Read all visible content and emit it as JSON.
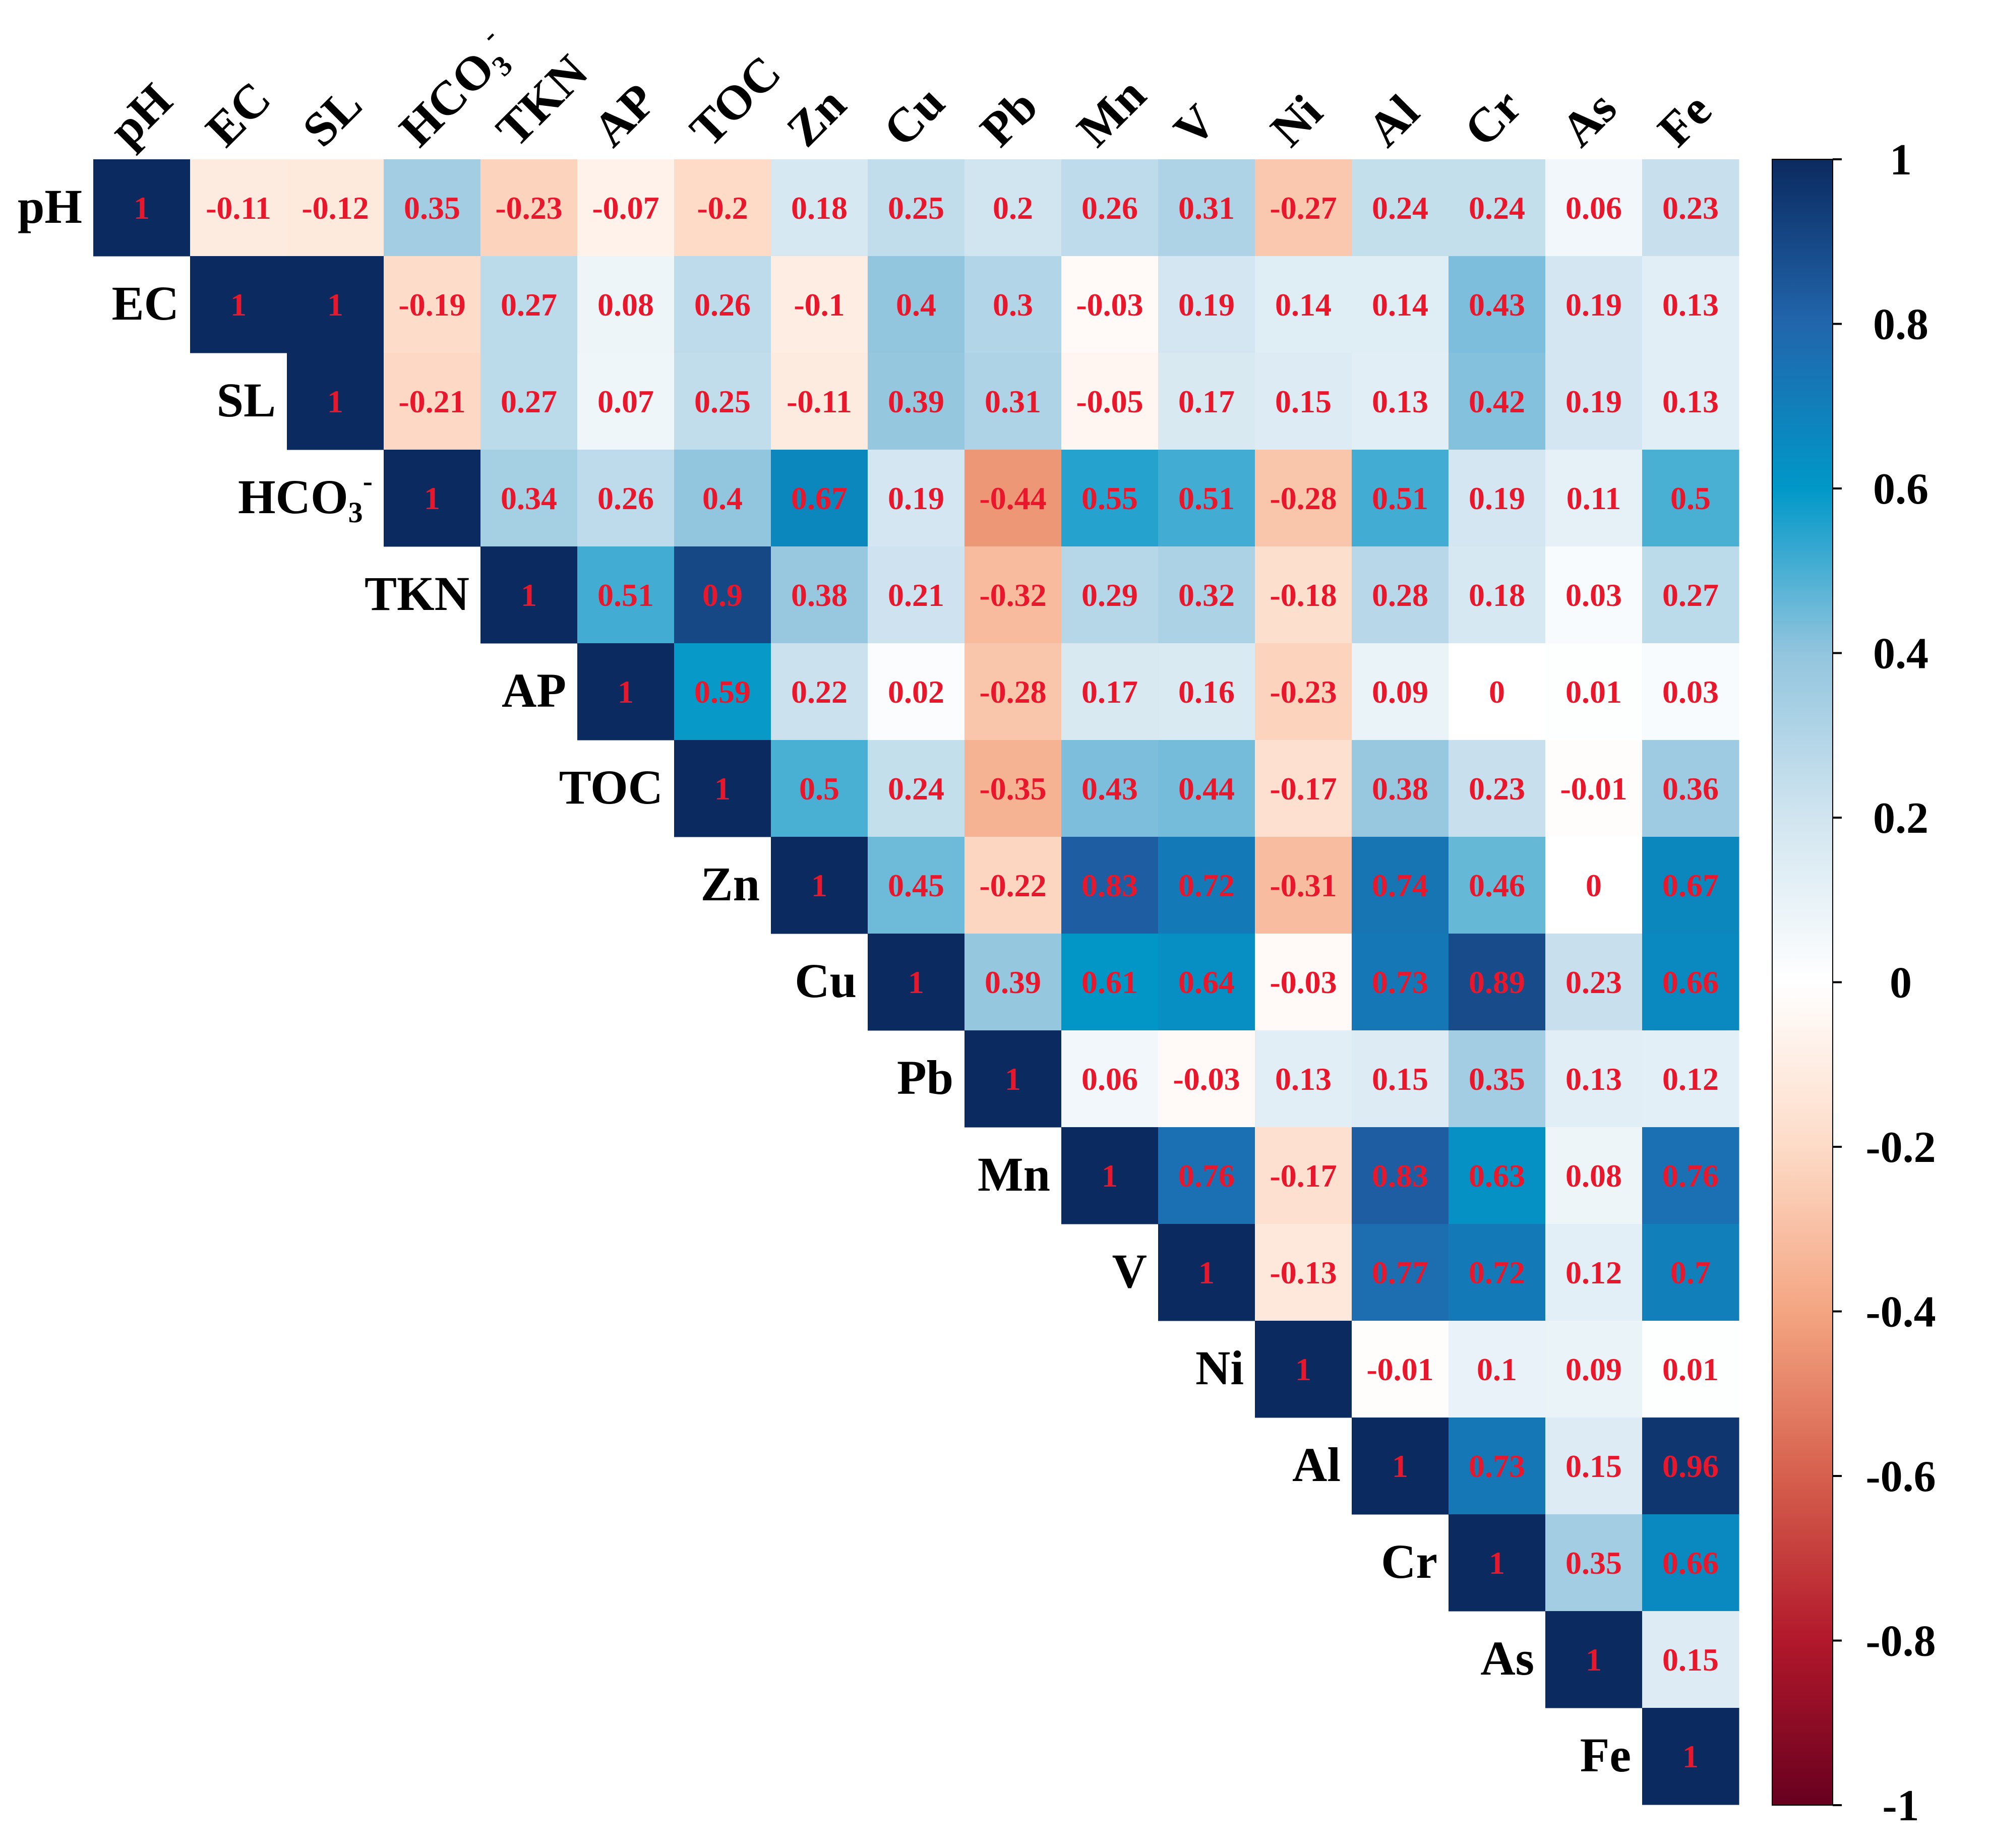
{
  "chart_data": {
    "type": "heatmap",
    "title": "",
    "variables": [
      "pH",
      "EC",
      "SL",
      "HCO3-",
      "TKN",
      "AP",
      "TOC",
      "Zn",
      "Cu",
      "Pb",
      "Mn",
      "V",
      "Ni",
      "Al",
      "Cr",
      "As",
      "Fe"
    ],
    "values": [
      [
        1,
        -0.11,
        -0.12,
        0.35,
        -0.23,
        -0.07,
        -0.2,
        0.18,
        0.25,
        0.2,
        0.26,
        0.31,
        -0.27,
        0.24,
        0.24,
        0.06,
        0.23
      ],
      [
        null,
        1,
        1,
        -0.19,
        0.27,
        0.08,
        0.26,
        -0.1,
        0.4,
        0.3,
        -0.03,
        0.19,
        0.14,
        0.14,
        0.43,
        0.19,
        0.13
      ],
      [
        null,
        null,
        1,
        -0.21,
        0.27,
        0.07,
        0.25,
        -0.11,
        0.39,
        0.31,
        -0.05,
        0.17,
        0.15,
        0.13,
        0.42,
        0.19,
        0.13
      ],
      [
        null,
        null,
        null,
        1,
        0.34,
        0.26,
        0.4,
        0.67,
        0.19,
        -0.44,
        0.55,
        0.51,
        -0.28,
        0.51,
        0.19,
        0.11,
        0.5
      ],
      [
        null,
        null,
        null,
        null,
        1,
        0.51,
        0.9,
        0.38,
        0.21,
        -0.32,
        0.29,
        0.32,
        -0.18,
        0.28,
        0.18,
        0.03,
        0.27
      ],
      [
        null,
        null,
        null,
        null,
        null,
        1,
        0.59,
        0.22,
        0.02,
        -0.28,
        0.17,
        0.16,
        -0.23,
        0.09,
        0,
        0.01,
        0.03
      ],
      [
        null,
        null,
        null,
        null,
        null,
        null,
        1,
        0.5,
        0.24,
        -0.35,
        0.43,
        0.44,
        -0.17,
        0.38,
        0.23,
        -0.01,
        0.36
      ],
      [
        null,
        null,
        null,
        null,
        null,
        null,
        null,
        1,
        0.45,
        -0.22,
        0.83,
        0.72,
        -0.31,
        0.74,
        0.46,
        0,
        0.67
      ],
      [
        null,
        null,
        null,
        null,
        null,
        null,
        null,
        null,
        1,
        0.39,
        0.61,
        0.64,
        -0.03,
        0.73,
        0.89,
        0.23,
        0.66
      ],
      [
        null,
        null,
        null,
        null,
        null,
        null,
        null,
        null,
        null,
        1,
        0.06,
        -0.03,
        0.13,
        0.15,
        0.35,
        0.13,
        0.12
      ],
      [
        null,
        null,
        null,
        null,
        null,
        null,
        null,
        null,
        null,
        null,
        1,
        0.76,
        -0.17,
        0.83,
        0.63,
        0.08,
        0.76
      ],
      [
        null,
        null,
        null,
        null,
        null,
        null,
        null,
        null,
        null,
        null,
        null,
        1,
        -0.13,
        0.77,
        0.72,
        0.12,
        0.7
      ],
      [
        null,
        null,
        null,
        null,
        null,
        null,
        null,
        null,
        null,
        null,
        null,
        null,
        1,
        -0.01,
        0.1,
        0.09,
        0.01
      ],
      [
        null,
        null,
        null,
        null,
        null,
        null,
        null,
        null,
        null,
        null,
        null,
        null,
        null,
        1,
        0.73,
        0.15,
        0.96
      ],
      [
        null,
        null,
        null,
        null,
        null,
        null,
        null,
        null,
        null,
        null,
        null,
        null,
        null,
        null,
        1,
        0.35,
        0.66
      ],
      [
        null,
        null,
        null,
        null,
        null,
        null,
        null,
        null,
        null,
        null,
        null,
        null,
        null,
        null,
        null,
        1,
        0.15
      ],
      [
        null,
        null,
        null,
        null,
        null,
        null,
        null,
        null,
        null,
        null,
        null,
        null,
        null,
        null,
        null,
        null,
        1
      ]
    ],
    "colorbar": {
      "range": [
        -1,
        1
      ],
      "ticks": [
        1,
        0.8,
        0.6,
        0.4,
        0.2,
        0,
        -0.2,
        -0.4,
        -0.6,
        -0.8,
        -1
      ],
      "tick_labels": [
        "1",
        "0.8",
        "0.6",
        "0.4",
        "0.2",
        "0",
        "-0.2",
        "-0.4",
        "-0.6",
        "-0.8",
        "-1"
      ],
      "colormap": "RdBu",
      "stops": [
        "#67001f",
        "#b2182b",
        "#d6604d",
        "#f4a582",
        "#fddbc7",
        "#ffffff",
        "#d1e5f0",
        "#92c5de",
        "#0098c8",
        "#2166ac",
        "#0b2a60"
      ]
    },
    "value_label_color": "#e8172b"
  }
}
